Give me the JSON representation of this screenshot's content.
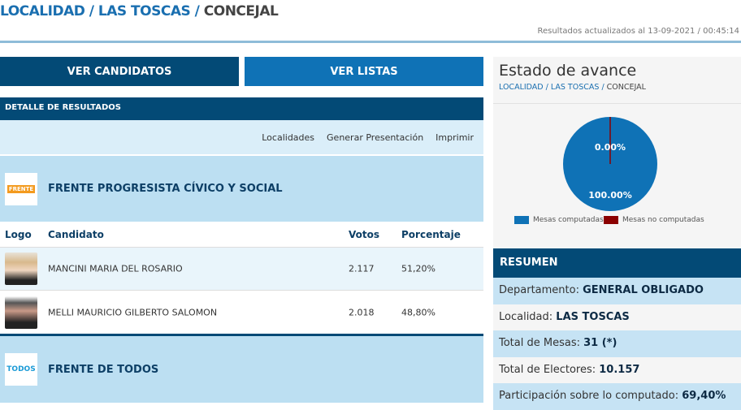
{
  "breadcrumb": {
    "level1": "LOCALIDAD",
    "sep": " / ",
    "level2": "LAS TOSCAS",
    "current": "CONCEJAL"
  },
  "updated": "Resultados actualizados al 13-09-2021 / 00:45:14",
  "buttons": {
    "candidatos": "VER CANDIDATOS",
    "listas": "VER LISTAS"
  },
  "detail_title": "DETALLE DE RESULTADOS",
  "links": [
    "Localidades",
    "Generar Presentación",
    "Imprimir"
  ],
  "table_headers": {
    "logo": "Logo",
    "candidato": "Candidato",
    "votos": "Votos",
    "porcentaje": "Porcentaje"
  },
  "parties": [
    {
      "name": "FRENTE PROGRESISTA CÍVICO Y SOCIAL",
      "logo_text": "FRENTE",
      "candidates": [
        {
          "name": "MANCINI MARIA DEL ROSARIO",
          "votos": "2.117",
          "porcentaje": "51,20%"
        },
        {
          "name": "MELLI MAURICIO GILBERTO SALOMON",
          "votos": "2.018",
          "porcentaje": "48,80%"
        }
      ]
    },
    {
      "name": "FRENTE DE TODOS",
      "logo_text": "TODOS",
      "candidates": []
    }
  ],
  "estado": {
    "title": "Estado de avance",
    "breadcrumb": {
      "level1": "LOCALIDAD",
      "level2": "LAS TOSCAS",
      "current": "CONCEJAL"
    }
  },
  "chart_data": {
    "type": "pie",
    "labels": [
      "Mesas computadas",
      "Mesas no computadas"
    ],
    "values": [
      100.0,
      0.0
    ],
    "data_labels": [
      "100.00%",
      "0.00%"
    ],
    "colors": [
      "#0f72b6",
      "#8b0000"
    ],
    "legend": "bottom"
  },
  "resumen": {
    "title": "RESUMEN",
    "rows": [
      {
        "label": "Departamento: ",
        "value": "GENERAL OBLIGADO"
      },
      {
        "label": "Localidad: ",
        "value": "LAS TOSCAS"
      },
      {
        "label": "Total de Mesas: ",
        "value": "31",
        "suffix": " (*)"
      },
      {
        "label": "Total de Electores: ",
        "value": "10.157"
      },
      {
        "label": "Participación sobre lo computado: ",
        "value": "69,40%"
      }
    ]
  }
}
